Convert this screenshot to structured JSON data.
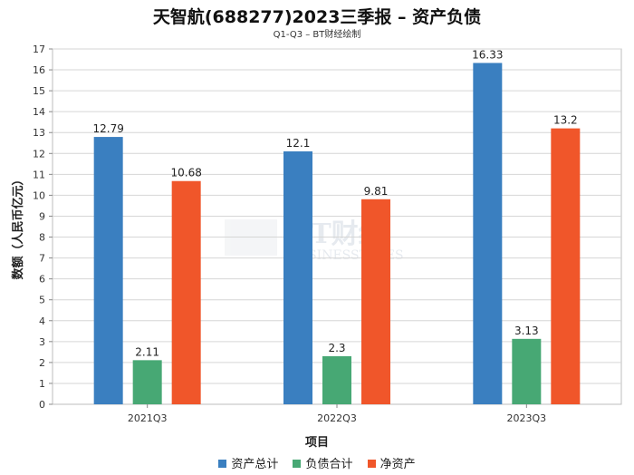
{
  "chart_data": {
    "type": "bar",
    "title": "天智航(688277)2023三季报 – 资产负债",
    "subtitle": "Q1-Q3 – BT财经绘制",
    "xlabel": "项目",
    "ylabel": "数额（人民币亿元）",
    "ylim": [
      0,
      17
    ],
    "yticks": [
      0,
      1,
      2,
      3,
      4,
      5,
      6,
      7,
      8,
      9,
      10,
      11,
      12,
      13,
      14,
      15,
      16,
      17
    ],
    "grid": true,
    "legend_position": "bottom",
    "categories": [
      "2021Q3",
      "2022Q3",
      "2023Q3"
    ],
    "series": [
      {
        "name": "资产总计",
        "color": "#3a7fc0",
        "values": [
          12.79,
          12.1,
          16.33
        ]
      },
      {
        "name": "负债合计",
        "color": "#47a874",
        "values": [
          2.11,
          2.3,
          3.13
        ]
      },
      {
        "name": "净资产",
        "color": "#f0562a",
        "values": [
          10.68,
          9.81,
          13.2
        ]
      }
    ],
    "data_labels": [
      [
        "12.79",
        "12.1",
        "16.33"
      ],
      [
        "2.11",
        "2.3",
        "3.13"
      ],
      [
        "10.68",
        "9.81",
        "13.2"
      ]
    ],
    "watermark": "BT财经 BUSINESSTIMES"
  }
}
